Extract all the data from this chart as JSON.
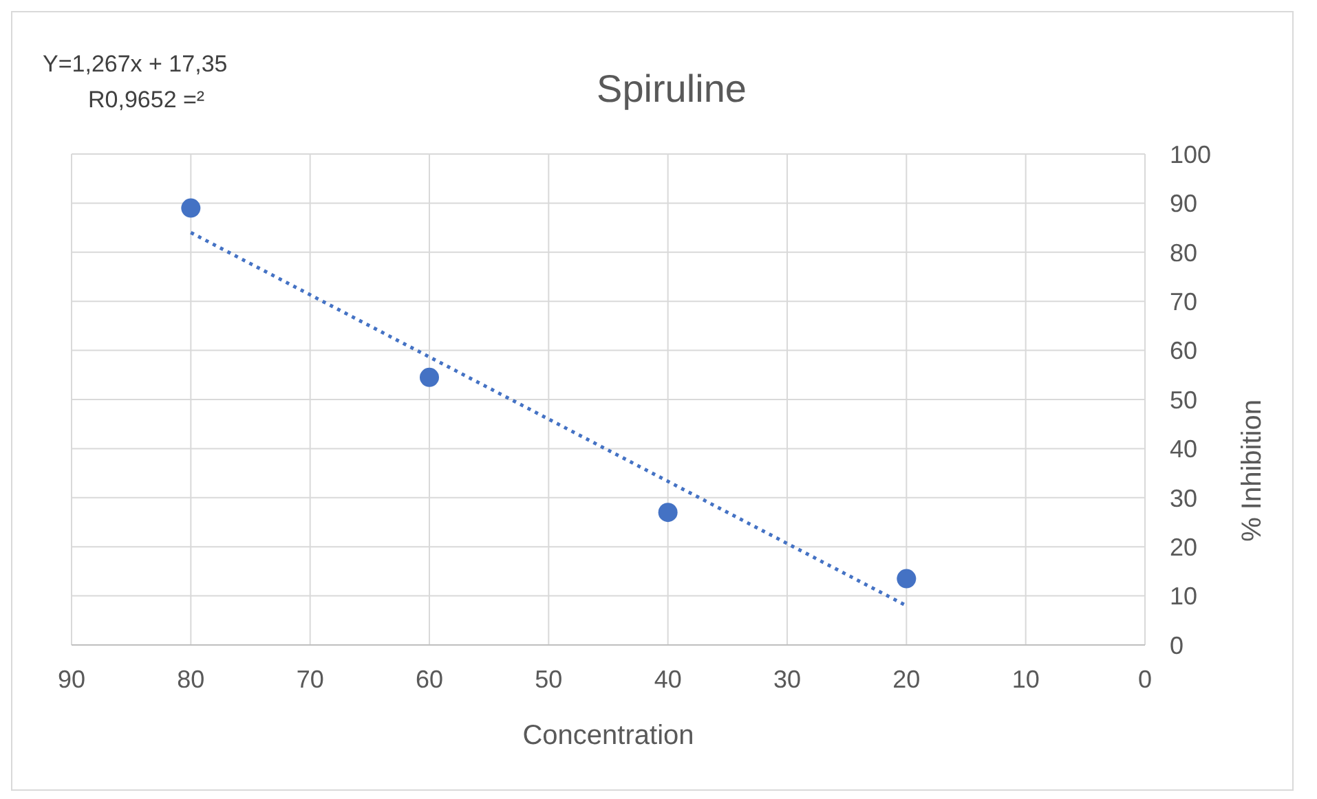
{
  "chart_data": {
    "type": "scatter",
    "title": "Spiruline",
    "xlabel": "Concentration",
    "ylabel": "% Inhibition",
    "annotations": [
      "Y=1,267x + 17,35",
      "R0,9652 =²"
    ],
    "series": [
      {
        "type": "scatter",
        "color": "#4472c4",
        "x": [
          80,
          60,
          40,
          20
        ],
        "values": [
          89,
          54.5,
          27,
          13.5
        ],
        "marker": "circle"
      },
      {
        "type": "line",
        "color": "#4472c4",
        "x": [
          80,
          20
        ],
        "values": [
          84,
          8
        ],
        "marker": "none",
        "line_style": "dotted"
      }
    ],
    "xlim": [
      90,
      0
    ],
    "xticks": [
      90,
      80,
      70,
      60,
      50,
      40,
      30,
      20,
      10,
      0
    ],
    "ylim": [
      0,
      100
    ],
    "yticks": [
      0,
      10,
      20,
      30,
      40,
      50,
      60,
      70,
      80,
      90,
      100
    ],
    "grid": true,
    "legend": false
  }
}
